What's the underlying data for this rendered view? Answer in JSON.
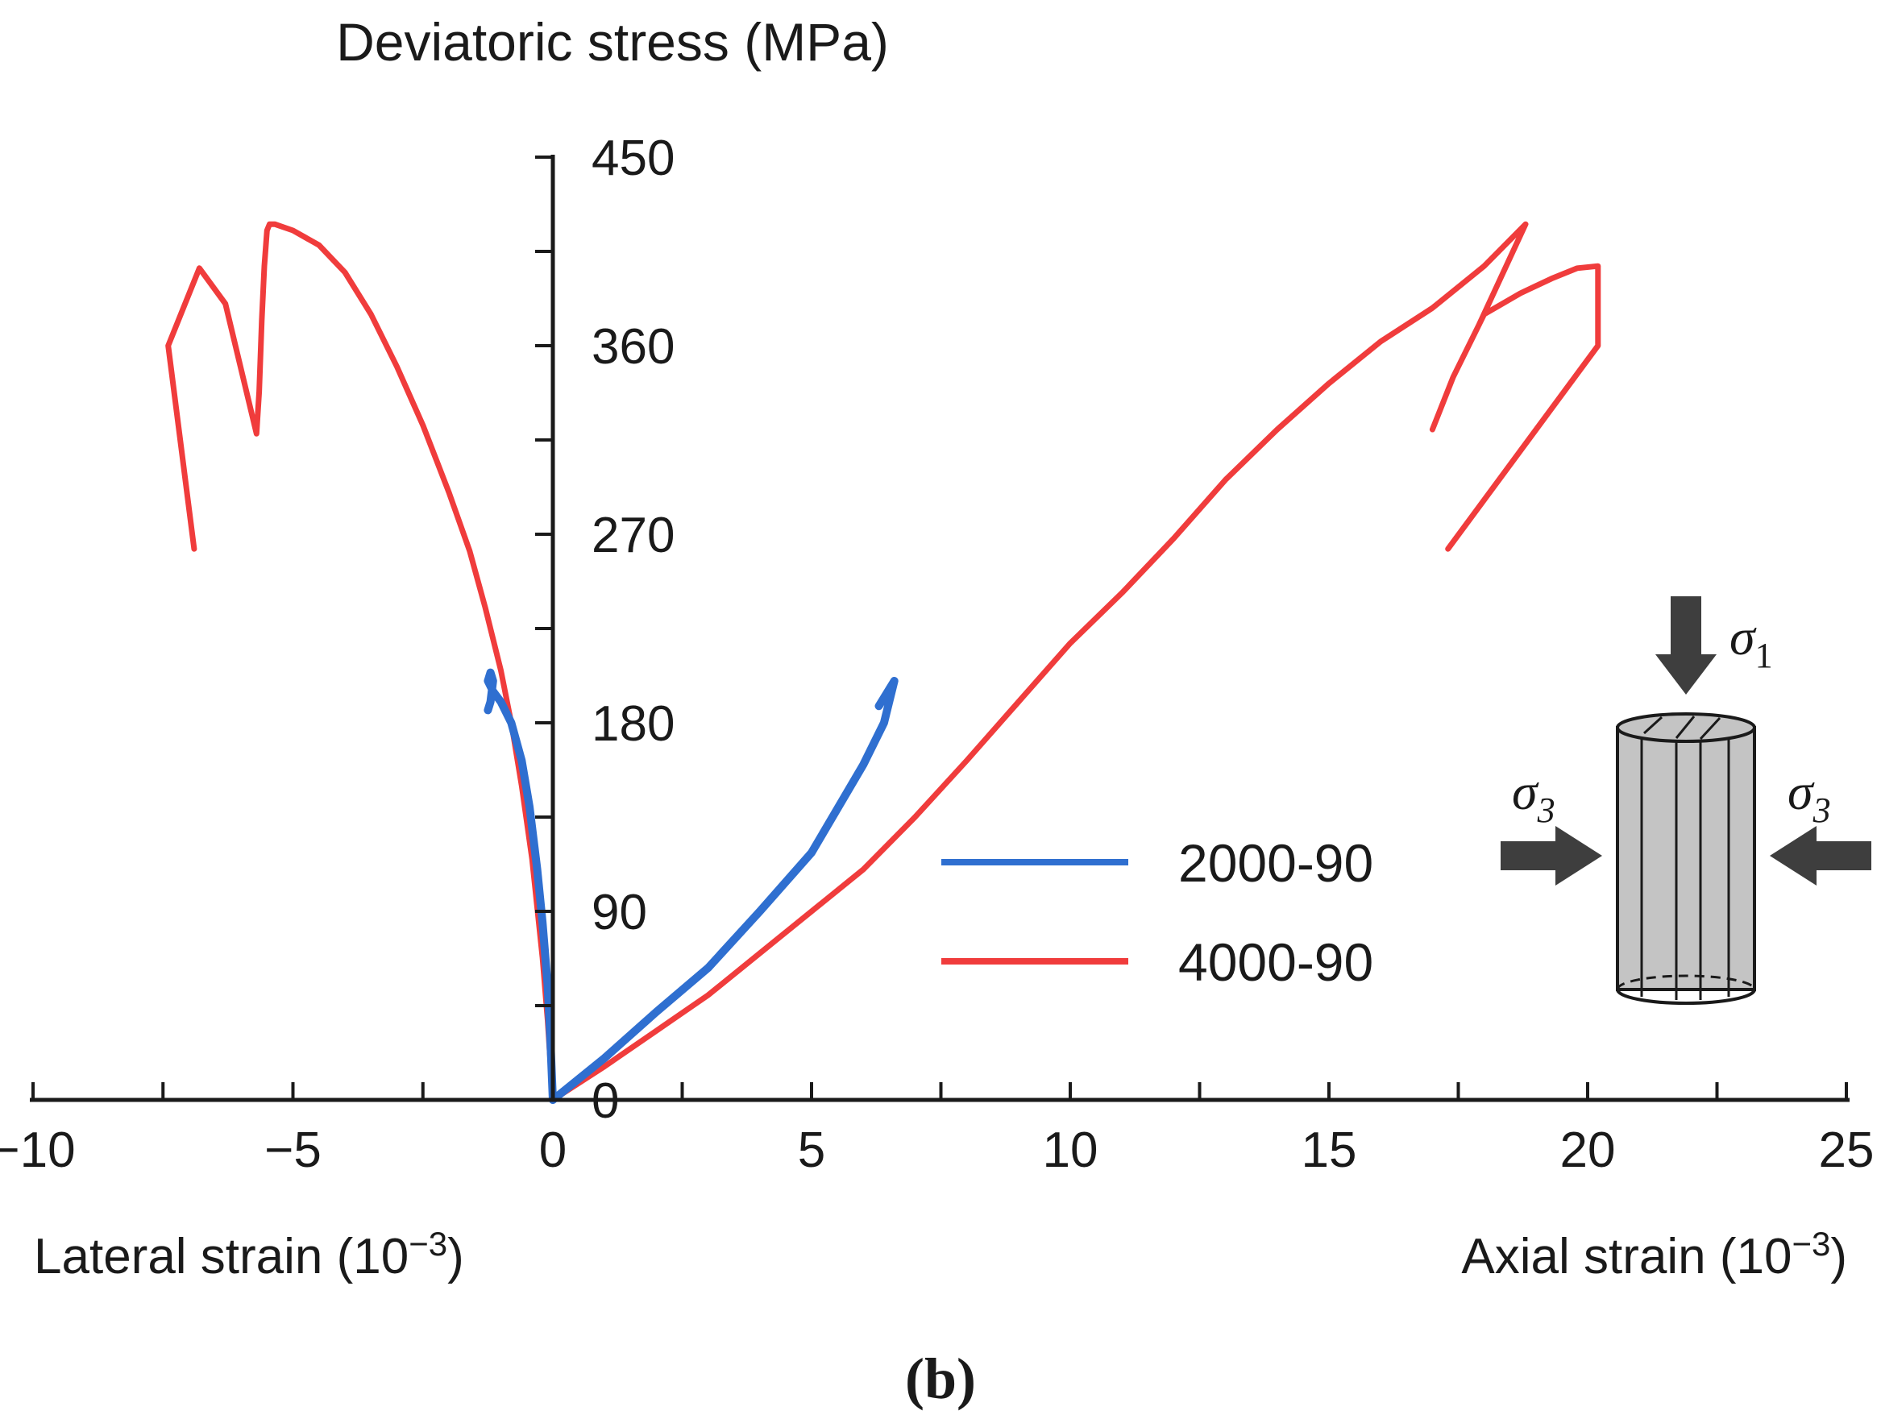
{
  "chart_data": {
    "type": "line",
    "panel_label": "(b)",
    "ylabel": "Deviatoric stress (MPa)",
    "xlabel_left": "Lateral strain (10",
    "xlabel_right": "Axial strain (10",
    "xlabel_exponent": "−3",
    "xlabel_close": ")",
    "xlim": [
      -10,
      25
    ],
    "ylim": [
      0,
      450
    ],
    "x_ticks": [
      -10,
      -5,
      0,
      5,
      10,
      15,
      20,
      25
    ],
    "x_tick_labels": [
      "−10",
      "−5",
      "0",
      "5",
      "10",
      "15",
      "20",
      "25"
    ],
    "y_ticks": [
      0,
      90,
      180,
      270,
      360,
      450
    ],
    "y_tick_labels": [
      "0",
      "90",
      "180",
      "270",
      "360",
      "450"
    ],
    "legend": [
      {
        "name": "2000-90",
        "color": "#2f6fd0"
      },
      {
        "name": "4000-90",
        "color": "#f03c3c"
      }
    ],
    "inset": {
      "sigma1": {
        "symbol": "σ",
        "sub": "1"
      },
      "sigma3_left": {
        "symbol": "σ",
        "sub": "3"
      },
      "sigma3_right": {
        "symbol": "σ",
        "sub": "3"
      }
    },
    "series": [
      {
        "name": "4000-90",
        "color": "#f03c3c",
        "branches": [
          {
            "side": "lateral",
            "x": [
              0,
              -0.1,
              -0.2,
              -0.4,
              -0.6,
              -0.8,
              -1.0,
              -1.3,
              -1.6,
              -2.0,
              -2.5,
              -3.0,
              -3.5,
              -4.0,
              -4.5,
              -5.0,
              -5.35,
              -5.45,
              -5.5,
              -5.55,
              -5.6,
              -5.65,
              -5.7,
              -6.3,
              -6.8,
              -7.4,
              -6.9
            ],
            "y": [
              0,
              38,
              68,
              115,
              150,
              180,
              205,
              235,
              262,
              290,
              322,
              350,
              375,
              395,
              408,
              415,
              418,
              418,
              415,
              398,
              372,
              338,
              318,
              380,
              397,
              360,
              263
            ]
          },
          {
            "side": "axial",
            "x": [
              0,
              1,
              2,
              3,
              4,
              5,
              6,
              7,
              8,
              9,
              10,
              11,
              12,
              13,
              14,
              15,
              16,
              17,
              18,
              18.8,
              17.9,
              17.4,
              17.0,
              17.4,
              18.0,
              18.7,
              19.3,
              19.8,
              20.2,
              20.2,
              17.3
            ],
            "y": [
              0,
              16,
              33,
              50,
              70,
              90,
              110,
              135,
              162,
              190,
              218,
              242,
              268,
              296,
              320,
              342,
              362,
              378,
              398,
              418,
              370,
              345,
              320,
              345,
              375,
              385,
              392,
              397,
              398,
              360,
              263
            ]
          }
        ]
      },
      {
        "name": "2000-90",
        "color": "#2f6fd0",
        "branches": [
          {
            "side": "lateral",
            "x": [
              0,
              -0.05,
              -0.1,
              -0.2,
              -0.3,
              -0.45,
              -0.6,
              -0.8,
              -1.0,
              -1.15,
              -1.25,
              -1.2,
              -1.15,
              -1.2,
              -1.25
            ],
            "y": [
              0,
              30,
              55,
              85,
              110,
              140,
              162,
              180,
              190,
              195,
              200,
              204,
              200,
              190,
              186
            ]
          },
          {
            "side": "axial",
            "x": [
              0,
              1,
              2,
              3,
              4,
              5,
              6,
              6.4,
              6.6,
              6.5,
              6.3
            ],
            "y": [
              0,
              20,
              42,
              63,
              90,
              118,
              160,
              180,
              200,
              196,
              188
            ]
          }
        ]
      }
    ]
  }
}
